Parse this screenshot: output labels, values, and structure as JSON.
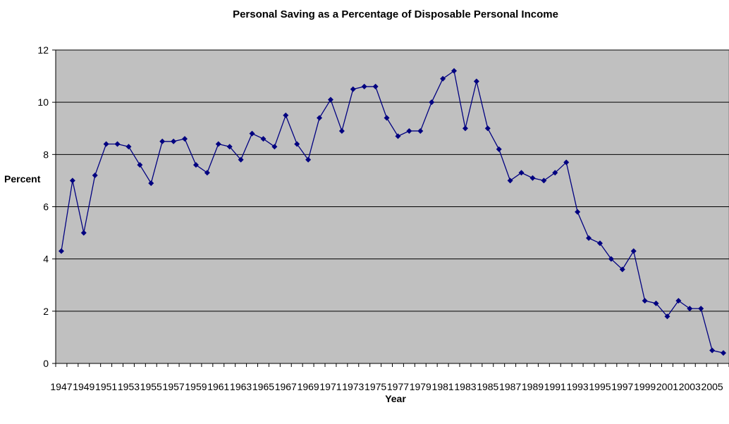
{
  "chart_data": {
    "type": "line",
    "title": "Personal Saving as a Percentage of Disposable Personal Income",
    "xlabel": "Year",
    "ylabel": "Percent",
    "ylim": [
      0,
      12
    ],
    "yticks": [
      "0",
      "2",
      "4",
      "6",
      "8",
      "10",
      "12"
    ],
    "grid": "horizontal",
    "legend": "none",
    "background_color": "#c0c0c0",
    "line_color": "#000080",
    "x": [
      1947,
      1948,
      1949,
      1950,
      1951,
      1952,
      1953,
      1954,
      1955,
      1956,
      1957,
      1958,
      1959,
      1960,
      1961,
      1962,
      1963,
      1964,
      1965,
      1966,
      1967,
      1968,
      1969,
      1970,
      1971,
      1972,
      1973,
      1974,
      1975,
      1976,
      1977,
      1978,
      1979,
      1980,
      1981,
      1982,
      1983,
      1984,
      1985,
      1986,
      1987,
      1988,
      1989,
      1990,
      1991,
      1992,
      1993,
      1994,
      1995,
      1996,
      1997,
      1998,
      1999,
      2000,
      2001,
      2002,
      2003,
      2004,
      2005,
      2006
    ],
    "xtick_labels": [
      "1947",
      "1949",
      "1951",
      "1953",
      "1955",
      "1957",
      "1959",
      "1961",
      "1963",
      "1965",
      "1967",
      "1969",
      "1971",
      "1973",
      "1975",
      "1977",
      "1979",
      "1981",
      "1983",
      "1985",
      "1987",
      "1989",
      "1991",
      "1993",
      "1995",
      "1997",
      "1999",
      "2001",
      "2003",
      "2005"
    ],
    "series": [
      {
        "values": [
          4.3,
          7.0,
          5.0,
          7.2,
          8.4,
          8.4,
          8.3,
          7.6,
          6.9,
          8.5,
          8.5,
          8.6,
          7.6,
          7.3,
          8.4,
          8.3,
          7.8,
          8.8,
          8.6,
          8.3,
          9.5,
          8.4,
          7.8,
          9.4,
          10.1,
          8.9,
          10.5,
          10.6,
          10.6,
          9.4,
          8.7,
          8.9,
          8.9,
          10.0,
          10.9,
          11.2,
          9.0,
          10.8,
          9.0,
          8.2,
          7.0,
          7.3,
          7.1,
          7.0,
          7.3,
          7.7,
          5.8,
          4.8,
          4.6,
          4.0,
          3.6,
          4.3,
          2.4,
          2.3,
          1.8,
          2.4,
          2.1,
          2.1,
          0.5,
          0.4
        ]
      }
    ]
  }
}
